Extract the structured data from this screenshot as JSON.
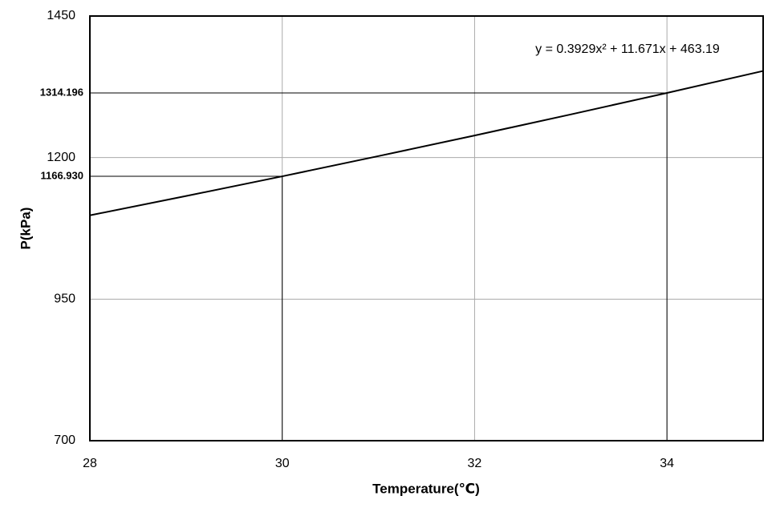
{
  "chart_data": {
    "type": "line",
    "x_label": "Temperature(℃)",
    "y_label": "P(kPa)",
    "annotation": "y = 0.3929x² + 11.671x + 463.19",
    "x": [
      28,
      29,
      30,
      31,
      32,
      33,
      34,
      35
    ],
    "series": [
      {
        "name": "P",
        "color": "#000000",
        "values": [
          1098.0,
          1132.1,
          1166.9,
          1202.6,
          1239.0,
          1276.2,
          1314.2,
          1353.0
        ]
      }
    ],
    "xlim": [
      28,
      35
    ],
    "xticks": [
      28,
      30,
      32,
      34
    ],
    "ylim": [
      700,
      1450
    ],
    "yticks": [
      700,
      950,
      1200,
      1450
    ],
    "grid": true,
    "reference_points": [
      {
        "x": 30,
        "y": 1166.93,
        "label": "1166.930"
      },
      {
        "x": 34,
        "y": 1314.196,
        "label": "1314.196"
      }
    ]
  }
}
